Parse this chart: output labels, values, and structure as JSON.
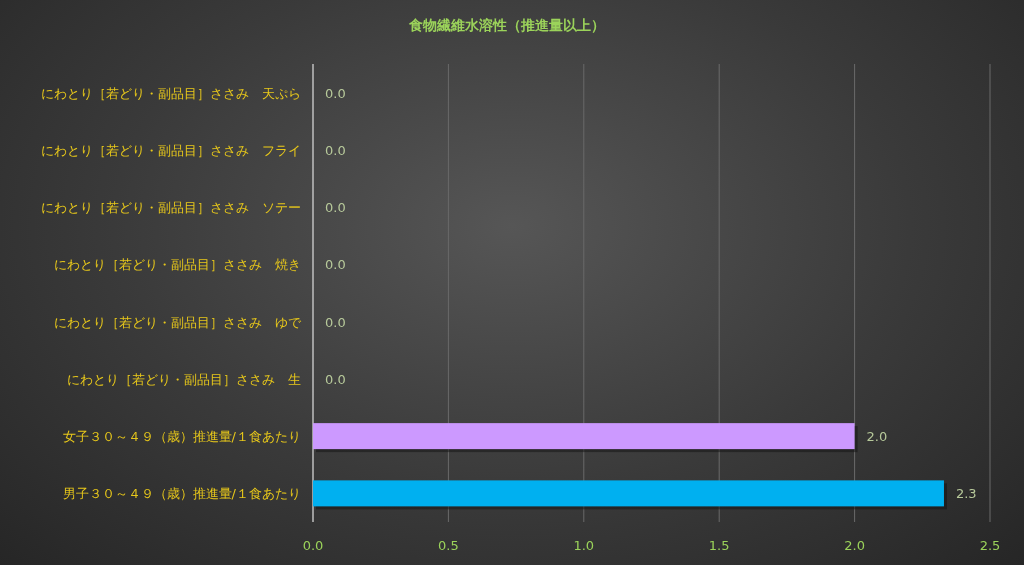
{
  "chart_data": {
    "type": "bar",
    "orientation": "horizontal",
    "title": "食物繊維水溶性（推進量以上）",
    "categories": [
      "にわとり［若どり・副品目］ささみ　天ぷら",
      "にわとり［若どり・副品目］ささみ　フライ",
      "にわとり［若どり・副品目］ささみ　ソテー",
      "にわとり［若どり・副品目］ささみ　焼き",
      "にわとり［若どり・副品目］ささみ　ゆで",
      "にわとり［若どり・副品目］ささみ　生",
      "女子３０～４９（歳）推進量/１食あたり",
      "男子３０～４９（歳）推進量/１食あたり"
    ],
    "values": [
      0,
      0,
      0,
      0,
      0,
      0,
      2.0,
      2.33
    ],
    "value_labels": [
      "0.0",
      "0.0",
      "0.0",
      "0.0",
      "0.0",
      "0.0",
      "2.0",
      "2.3"
    ],
    "colors": [
      "#5b9bd5",
      "#5b9bd5",
      "#5b9bd5",
      "#5b9bd5",
      "#5b9bd5",
      "#5b9bd5",
      "#cc99ff",
      "#00b0f0"
    ],
    "xlim": [
      0,
      2.5
    ],
    "xticks": [
      {
        "value": 0,
        "label": "0.0"
      },
      0.5,
      {
        "value": 1,
        "label": "1.0"
      },
      1.5,
      {
        "value": 2,
        "label": "2.0"
      },
      2.5
    ],
    "grid": "x"
  }
}
